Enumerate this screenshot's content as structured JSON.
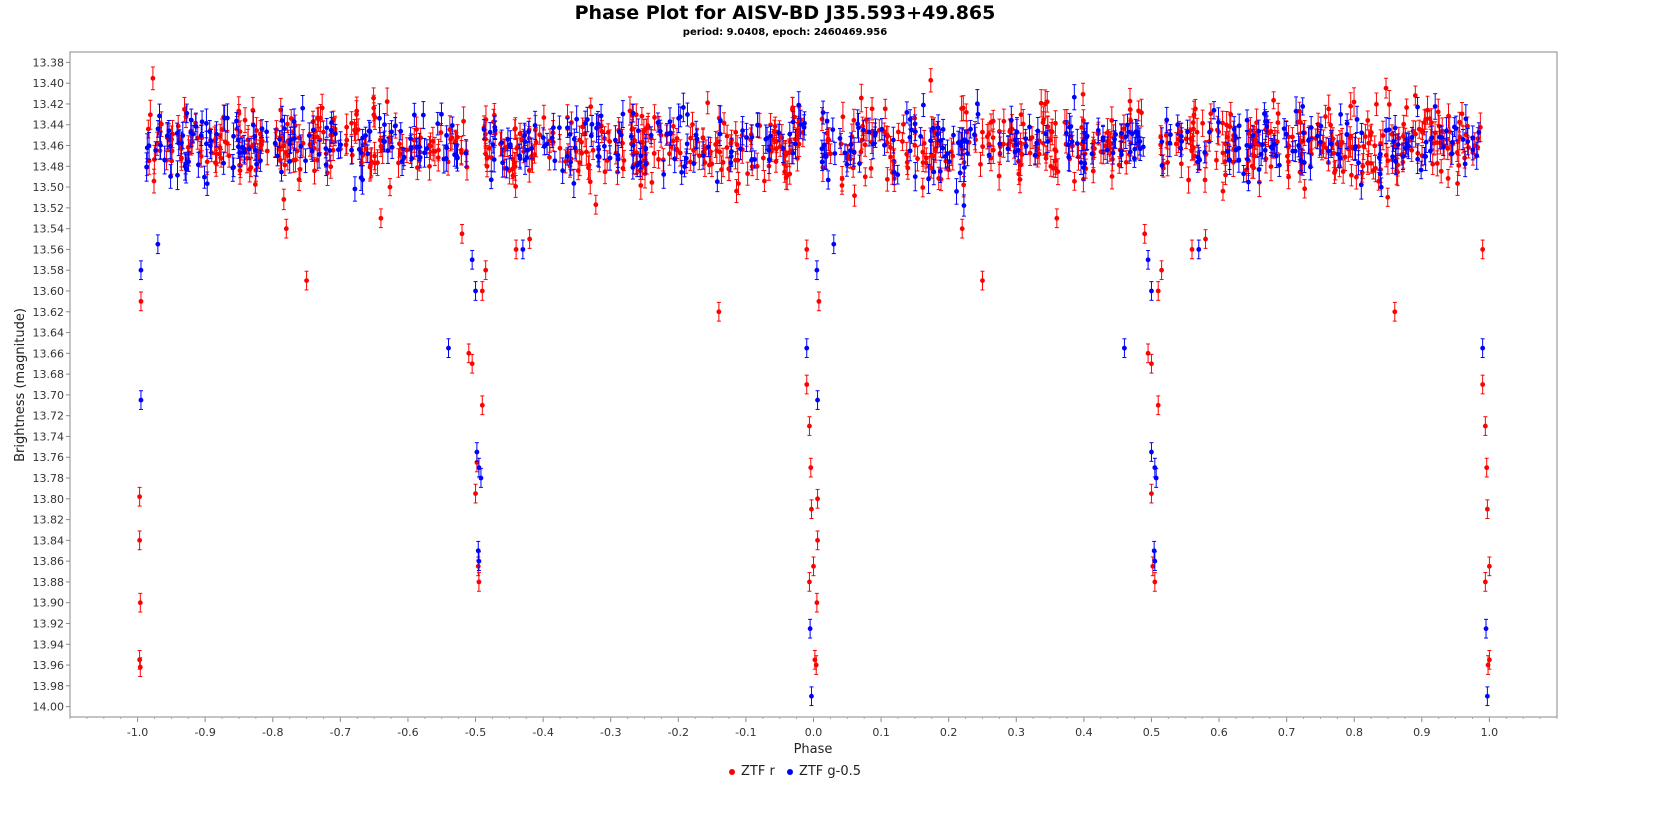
{
  "chart_data": {
    "type": "scatter",
    "title": "Phase Plot for AISV-BD J35.593+49.865",
    "subtitle": "period: 9.0408, epoch: 2460469.956",
    "xlabel": "Phase",
    "ylabel": "Brightness (magnitude)",
    "xlim": [
      -1.1,
      1.1
    ],
    "ylim": [
      14.01,
      13.37
    ],
    "y_inverted": true,
    "x_ticks": [
      "-1.0",
      "-0.9",
      "-0.8",
      "-0.7",
      "-0.6",
      "-0.5",
      "-0.4",
      "-0.3",
      "-0.2",
      "-0.1",
      "0.0",
      "0.1",
      "0.2",
      "0.3",
      "0.4",
      "0.5",
      "0.6",
      "0.7",
      "0.8",
      "0.9",
      "1.0"
    ],
    "y_ticks": [
      "13.38",
      "13.40",
      "13.42",
      "13.44",
      "13.46",
      "13.48",
      "13.50",
      "13.52",
      "13.54",
      "13.56",
      "13.58",
      "13.60",
      "13.62",
      "13.64",
      "13.66",
      "13.68",
      "13.70",
      "13.72",
      "13.74",
      "13.76",
      "13.78",
      "13.80",
      "13.82",
      "13.84",
      "13.86",
      "13.88",
      "13.90",
      "13.92",
      "13.94",
      "13.96",
      "13.98",
      "14.00"
    ],
    "grid": false,
    "legend_position": "bottom-center",
    "series": [
      {
        "name": "ZTF r",
        "color": "#ff0000",
        "baseline_mag": 13.458,
        "baseline_scatter": 0.018,
        "baseline_points": 900,
        "points": [
          [
            -0.995,
            13.61
          ],
          [
            -0.997,
            13.798
          ],
          [
            -0.997,
            13.84
          ],
          [
            -0.996,
            13.9
          ],
          [
            -0.997,
            13.955
          ],
          [
            -0.996,
            13.962
          ],
          [
            -0.52,
            13.545
          ],
          [
            -0.51,
            13.66
          ],
          [
            -0.505,
            13.67
          ],
          [
            -0.5,
            13.795
          ],
          [
            -0.498,
            13.765
          ],
          [
            -0.496,
            13.865
          ],
          [
            -0.495,
            13.88
          ],
          [
            -0.49,
            13.71
          ],
          [
            -0.49,
            13.6
          ],
          [
            -0.485,
            13.58
          ],
          [
            -0.78,
            13.54
          ],
          [
            -0.75,
            13.59
          ],
          [
            -0.64,
            13.53
          ],
          [
            -0.44,
            13.56
          ],
          [
            -0.42,
            13.55
          ],
          [
            -0.14,
            13.62
          ],
          [
            -0.01,
            13.56
          ],
          [
            -0.01,
            13.69
          ],
          [
            -0.006,
            13.73
          ],
          [
            -0.004,
            13.77
          ],
          [
            -0.003,
            13.81
          ],
          [
            -0.006,
            13.88
          ],
          [
            0.0,
            13.865
          ],
          [
            0.002,
            13.955
          ],
          [
            0.004,
            13.96
          ],
          [
            0.005,
            13.9
          ],
          [
            0.006,
            13.8
          ],
          [
            0.006,
            13.84
          ],
          [
            0.008,
            13.61
          ],
          [
            0.22,
            13.54
          ],
          [
            0.25,
            13.59
          ],
          [
            0.36,
            13.53
          ],
          [
            0.56,
            13.56
          ],
          [
            0.58,
            13.55
          ],
          [
            0.86,
            13.62
          ],
          [
            0.49,
            13.545
          ],
          [
            0.495,
            13.66
          ],
          [
            0.5,
            13.67
          ],
          [
            0.5,
            13.795
          ],
          [
            0.502,
            13.865
          ],
          [
            0.505,
            13.88
          ],
          [
            0.51,
            13.71
          ],
          [
            0.51,
            13.6
          ],
          [
            0.515,
            13.58
          ],
          [
            0.99,
            13.56
          ],
          [
            0.99,
            13.69
          ],
          [
            0.994,
            13.73
          ],
          [
            0.996,
            13.77
          ],
          [
            0.997,
            13.81
          ],
          [
            0.994,
            13.88
          ],
          [
            1.0,
            13.865
          ],
          [
            1.0,
            13.955
          ],
          [
            0.998,
            13.96
          ]
        ]
      },
      {
        "name": "ZTF g-0.5",
        "color": "#0000ff",
        "baseline_mag": 13.458,
        "baseline_scatter": 0.017,
        "baseline_points": 520,
        "points": [
          [
            -0.995,
            13.58
          ],
          [
            -0.995,
            13.705
          ],
          [
            -0.97,
            13.555
          ],
          [
            -0.54,
            13.655
          ],
          [
            -0.505,
            13.57
          ],
          [
            -0.5,
            13.6
          ],
          [
            -0.498,
            13.755
          ],
          [
            -0.495,
            13.77
          ],
          [
            -0.492,
            13.78
          ],
          [
            -0.496,
            13.85
          ],
          [
            -0.495,
            13.86
          ],
          [
            -0.43,
            13.56
          ],
          [
            -0.01,
            13.655
          ],
          [
            -0.005,
            13.925
          ],
          [
            -0.003,
            13.99
          ],
          [
            0.005,
            13.58
          ],
          [
            0.006,
            13.705
          ],
          [
            0.03,
            13.555
          ],
          [
            0.46,
            13.655
          ],
          [
            0.495,
            13.57
          ],
          [
            0.5,
            13.6
          ],
          [
            0.5,
            13.755
          ],
          [
            0.505,
            13.77
          ],
          [
            0.507,
            13.78
          ],
          [
            0.504,
            13.85
          ],
          [
            0.505,
            13.86
          ],
          [
            0.57,
            13.56
          ],
          [
            0.99,
            13.655
          ],
          [
            0.995,
            13.925
          ],
          [
            0.997,
            13.99
          ]
        ]
      }
    ]
  },
  "legend": {
    "series_r": "ZTF r",
    "series_g": "ZTF g-0.5"
  }
}
